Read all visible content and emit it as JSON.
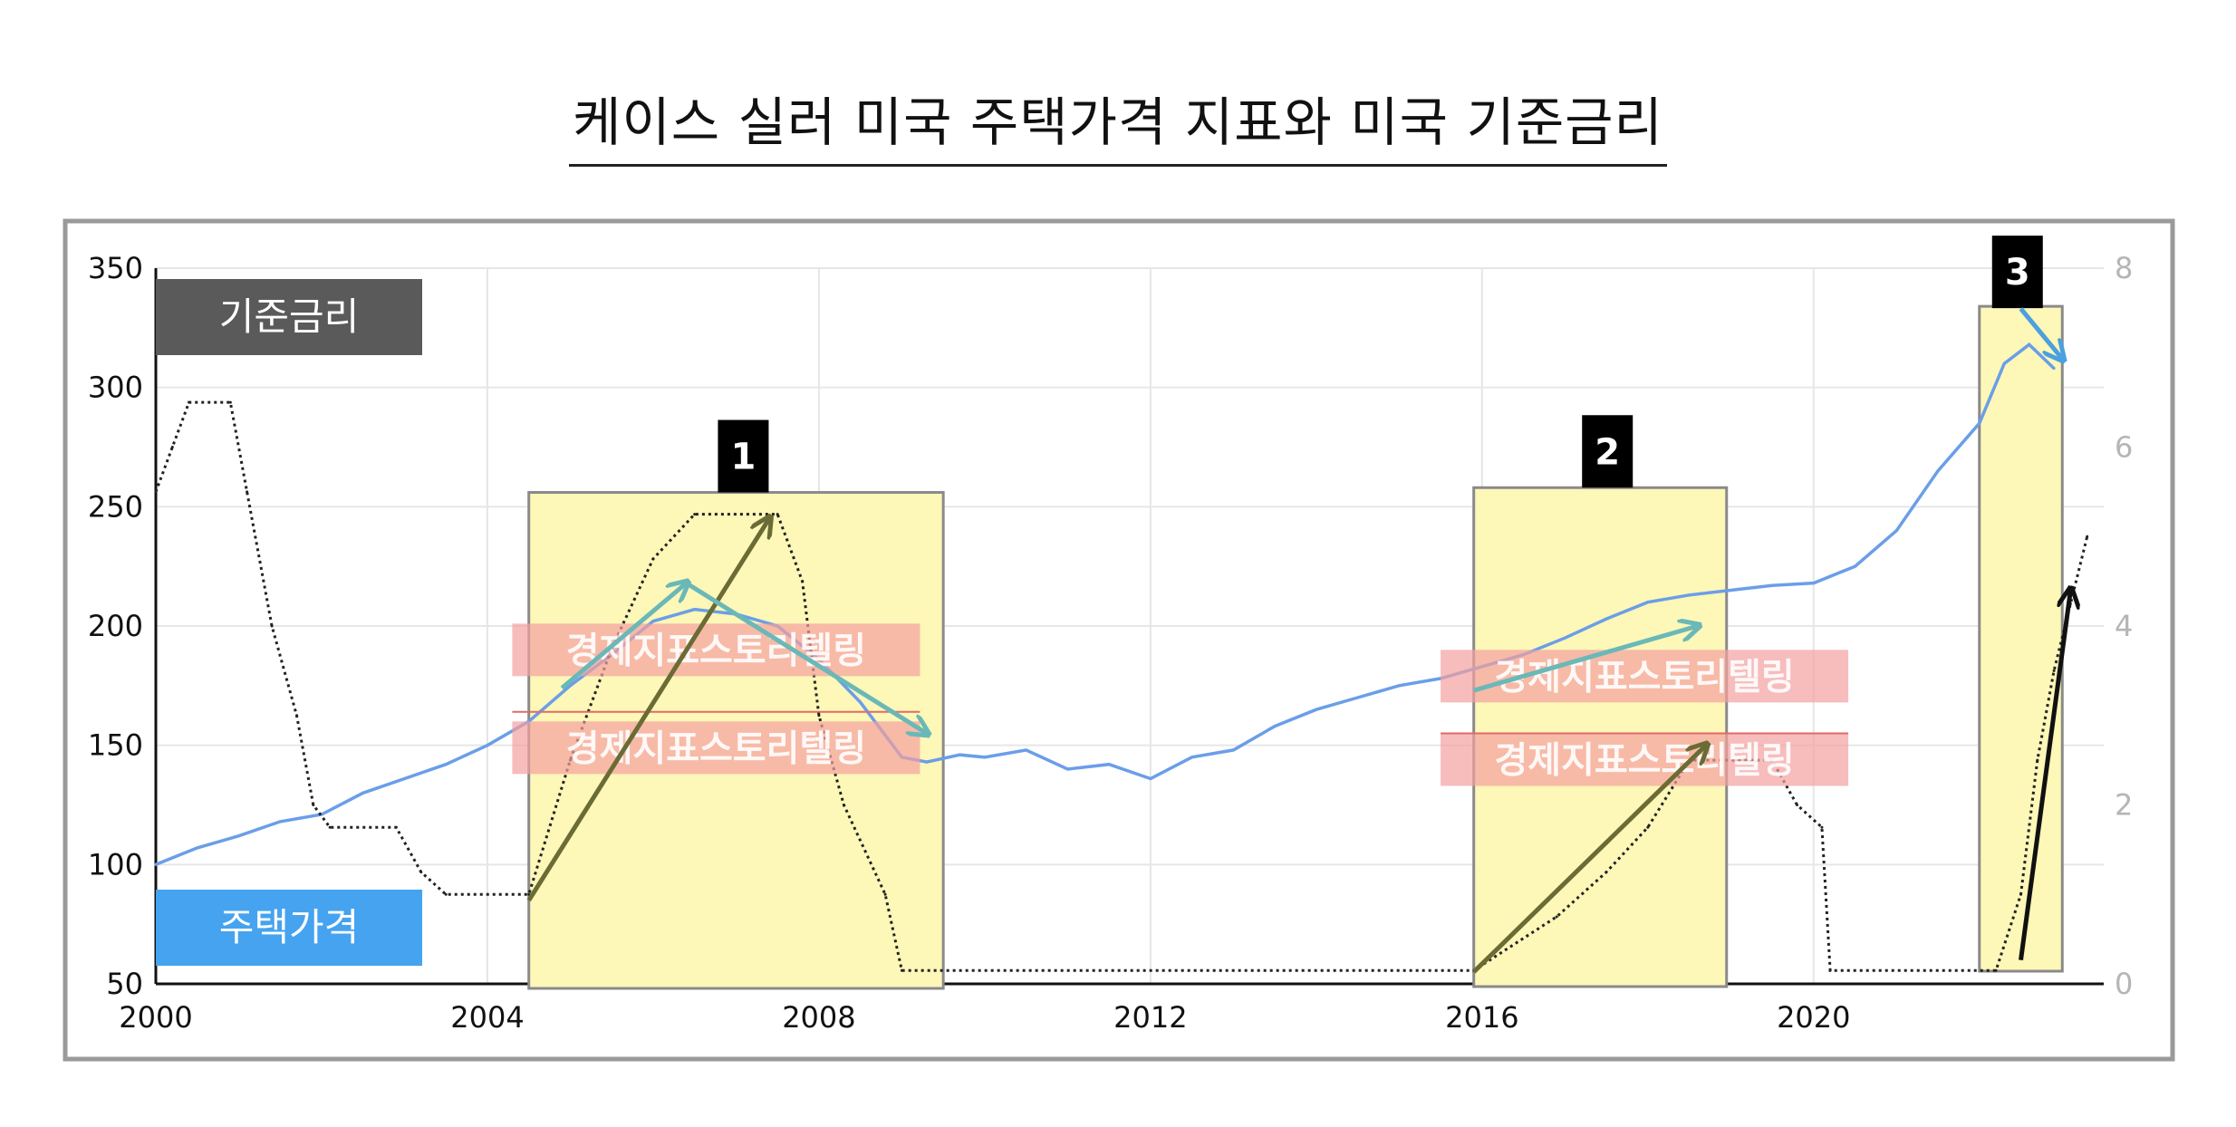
{
  "title": "케이스 실러 미국 주택가격 지표와 미국 기준금리",
  "legend": {
    "rate_label": "기준금리",
    "house_label": "주택가격"
  },
  "box_labels": [
    "1",
    "2",
    "3"
  ],
  "watermark": "경제지표스토리텔링",
  "colors": {
    "house_line": "#6a9ee8",
    "rate_line": "#222222",
    "highlight_fill": "#fdf7b8",
    "highlight_border": "#8a8a8a",
    "rate_legend_bg": "#5a5a5a",
    "house_legend_bg": "#45a3f0",
    "teal_arrow": "#6ab8b8",
    "olive_arrow": "#6b6b35",
    "watermark_bg": "#f4a0a0"
  },
  "chart_data": {
    "type": "line",
    "title": "케이스 실러 미국 주택가격 지표와 미국 기준금리",
    "xlabel": "",
    "ylabel": "",
    "xlim": [
      2000,
      2023.5
    ],
    "ylim": [
      50,
      350
    ],
    "y2lim": [
      0,
      8
    ],
    "x_ticks": [
      "2000",
      "2004",
      "2008",
      "2012",
      "2016",
      "2020"
    ],
    "y_ticks": [
      "50",
      "100",
      "150",
      "200",
      "250",
      "300",
      "350"
    ],
    "y2_ticks": [
      "0",
      "2",
      "4",
      "6",
      "8"
    ],
    "grid": true,
    "series": [
      {
        "name": "주택가격",
        "axis": "left",
        "x": [
          2000.0,
          2000.5,
          2001.0,
          2001.5,
          2002.0,
          2002.5,
          2003.0,
          2003.5,
          2004.0,
          2004.5,
          2005.0,
          2005.5,
          2006.0,
          2006.5,
          2007.0,
          2007.5,
          2008.0,
          2008.5,
          2009.0,
          2009.3,
          2009.7,
          2010.0,
          2010.5,
          2011.0,
          2011.5,
          2012.0,
          2012.5,
          2013.0,
          2013.5,
          2014.0,
          2014.5,
          2015.0,
          2015.5,
          2016.0,
          2016.5,
          2017.0,
          2017.5,
          2018.0,
          2018.5,
          2019.0,
          2019.5,
          2020.0,
          2020.5,
          2021.0,
          2021.5,
          2022.0,
          2022.3,
          2022.6,
          2022.9
        ],
        "values": [
          100,
          107,
          112,
          118,
          121,
          130,
          136,
          142,
          150,
          160,
          175,
          188,
          202,
          207,
          205,
          200,
          186,
          168,
          145,
          143,
          146,
          145,
          148,
          140,
          142,
          136,
          145,
          148,
          158,
          165,
          170,
          175,
          178,
          183,
          188,
          195,
          203,
          210,
          213,
          215,
          217,
          218,
          225,
          240,
          265,
          285,
          310,
          318,
          308
        ]
      },
      {
        "name": "기준금리",
        "axis": "right",
        "x": [
          2000.0,
          2000.2,
          2000.4,
          2000.9,
          2001.1,
          2001.4,
          2001.7,
          2001.9,
          2002.1,
          2002.9,
          2003.2,
          2003.5,
          2004.5,
          2005.0,
          2005.5,
          2006.0,
          2006.5,
          2007.5,
          2007.8,
          2008.0,
          2008.3,
          2008.8,
          2009.0,
          2015.9,
          2016.9,
          2017.5,
          2018.0,
          2018.5,
          2019.5,
          2019.8,
          2020.1,
          2020.2,
          2022.2,
          2022.5,
          2022.7,
          2022.9,
          2023.1,
          2023.3
        ],
        "values": [
          5.5,
          6.0,
          6.5,
          6.5,
          5.5,
          4.0,
          3.0,
          2.0,
          1.75,
          1.75,
          1.25,
          1.0,
          1.0,
          2.5,
          3.75,
          4.75,
          5.25,
          5.25,
          4.5,
          3.0,
          2.0,
          1.0,
          0.15,
          0.15,
          0.75,
          1.25,
          1.75,
          2.5,
          2.5,
          2.0,
          1.75,
          0.15,
          0.15,
          1.0,
          2.5,
          3.5,
          4.25,
          5.0
        ]
      }
    ],
    "highlights": [
      {
        "label": "1",
        "x_start": 2004.5,
        "x_end": 2009.5
      },
      {
        "label": "2",
        "x_start": 2015.9,
        "x_end": 2018.95
      },
      {
        "label": "3",
        "x_start": 2022.0,
        "x_end": 2023.0
      }
    ]
  }
}
